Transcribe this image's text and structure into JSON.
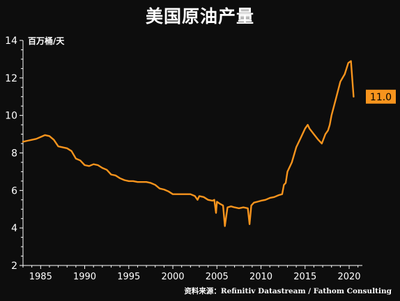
{
  "chart_data": {
    "type": "line",
    "title": "美国原油产量",
    "ylabel": "百万桶/天",
    "source": "资料来源：Refinitiv Datastream / Fathom Consulting",
    "xlim": [
      1983,
      2021.5
    ],
    "ylim": [
      2,
      14
    ],
    "x_ticks": [
      1985,
      1990,
      1995,
      2000,
      2005,
      2010,
      2015,
      2020
    ],
    "y_ticks": [
      2,
      4,
      6,
      8,
      10,
      12,
      14
    ],
    "last_value_label": "11.0",
    "colors": {
      "line": "#f7941d",
      "background": "#0d0d0d",
      "axis": "#ffffff",
      "label_box": "#f7941d"
    },
    "series": [
      {
        "x": [
          1983.0,
          1983.5,
          1984.0,
          1984.5,
          1985.0,
          1985.5,
          1986.0,
          1986.5,
          1987.0,
          1987.5,
          1988.0,
          1988.5,
          1989.0,
          1989.5,
          1990.0,
          1990.5,
          1991.0,
          1991.5,
          1992.0,
          1992.5,
          1993.0,
          1993.5,
          1994.0,
          1994.5,
          1995.0,
          1995.5,
          1996.0,
          1996.5,
          1997.0,
          1997.5,
          1998.0,
          1998.5,
          1999.0,
          1999.5,
          2000.0,
          2000.5,
          2001.0,
          2001.5,
          2002.0,
          2002.5,
          2002.8,
          2003.0,
          2003.5,
          2004.0,
          2004.5,
          2004.7,
          2004.9,
          2005.0,
          2005.3,
          2005.7,
          2005.9,
          2006.2,
          2006.6,
          2007.0,
          2007.5,
          2008.0,
          2008.5,
          2008.7,
          2008.9,
          2009.2,
          2009.6,
          2010.0,
          2010.5,
          2011.0,
          2011.5,
          2012.0,
          2012.4,
          2012.6,
          2012.8,
          2013.0,
          2013.5,
          2014.0,
          2014.5,
          2015.0,
          2015.3,
          2015.5,
          2016.0,
          2016.5,
          2016.9,
          2017.3,
          2017.6,
          2017.8,
          2018.0,
          2018.5,
          2019.0,
          2019.5,
          2019.9,
          2020.2,
          2020.5
        ],
        "y": [
          8.6,
          8.65,
          8.7,
          8.75,
          8.85,
          8.95,
          8.9,
          8.7,
          8.35,
          8.3,
          8.25,
          8.1,
          7.7,
          7.6,
          7.35,
          7.3,
          7.4,
          7.35,
          7.2,
          7.1,
          6.85,
          6.8,
          6.65,
          6.55,
          6.5,
          6.5,
          6.45,
          6.45,
          6.45,
          6.4,
          6.3,
          6.1,
          6.05,
          5.95,
          5.8,
          5.8,
          5.8,
          5.8,
          5.8,
          5.7,
          5.5,
          5.7,
          5.65,
          5.5,
          5.45,
          5.5,
          4.8,
          5.4,
          5.3,
          5.2,
          4.1,
          5.1,
          5.15,
          5.1,
          5.05,
          5.1,
          5.05,
          4.2,
          5.2,
          5.35,
          5.4,
          5.45,
          5.5,
          5.6,
          5.65,
          5.75,
          5.8,
          6.3,
          6.4,
          7.0,
          7.5,
          8.3,
          8.8,
          9.3,
          9.5,
          9.3,
          9.0,
          8.7,
          8.5,
          9.0,
          9.2,
          9.5,
          10.0,
          10.9,
          11.8,
          12.2,
          12.8,
          12.9,
          11.0
        ]
      }
    ]
  }
}
